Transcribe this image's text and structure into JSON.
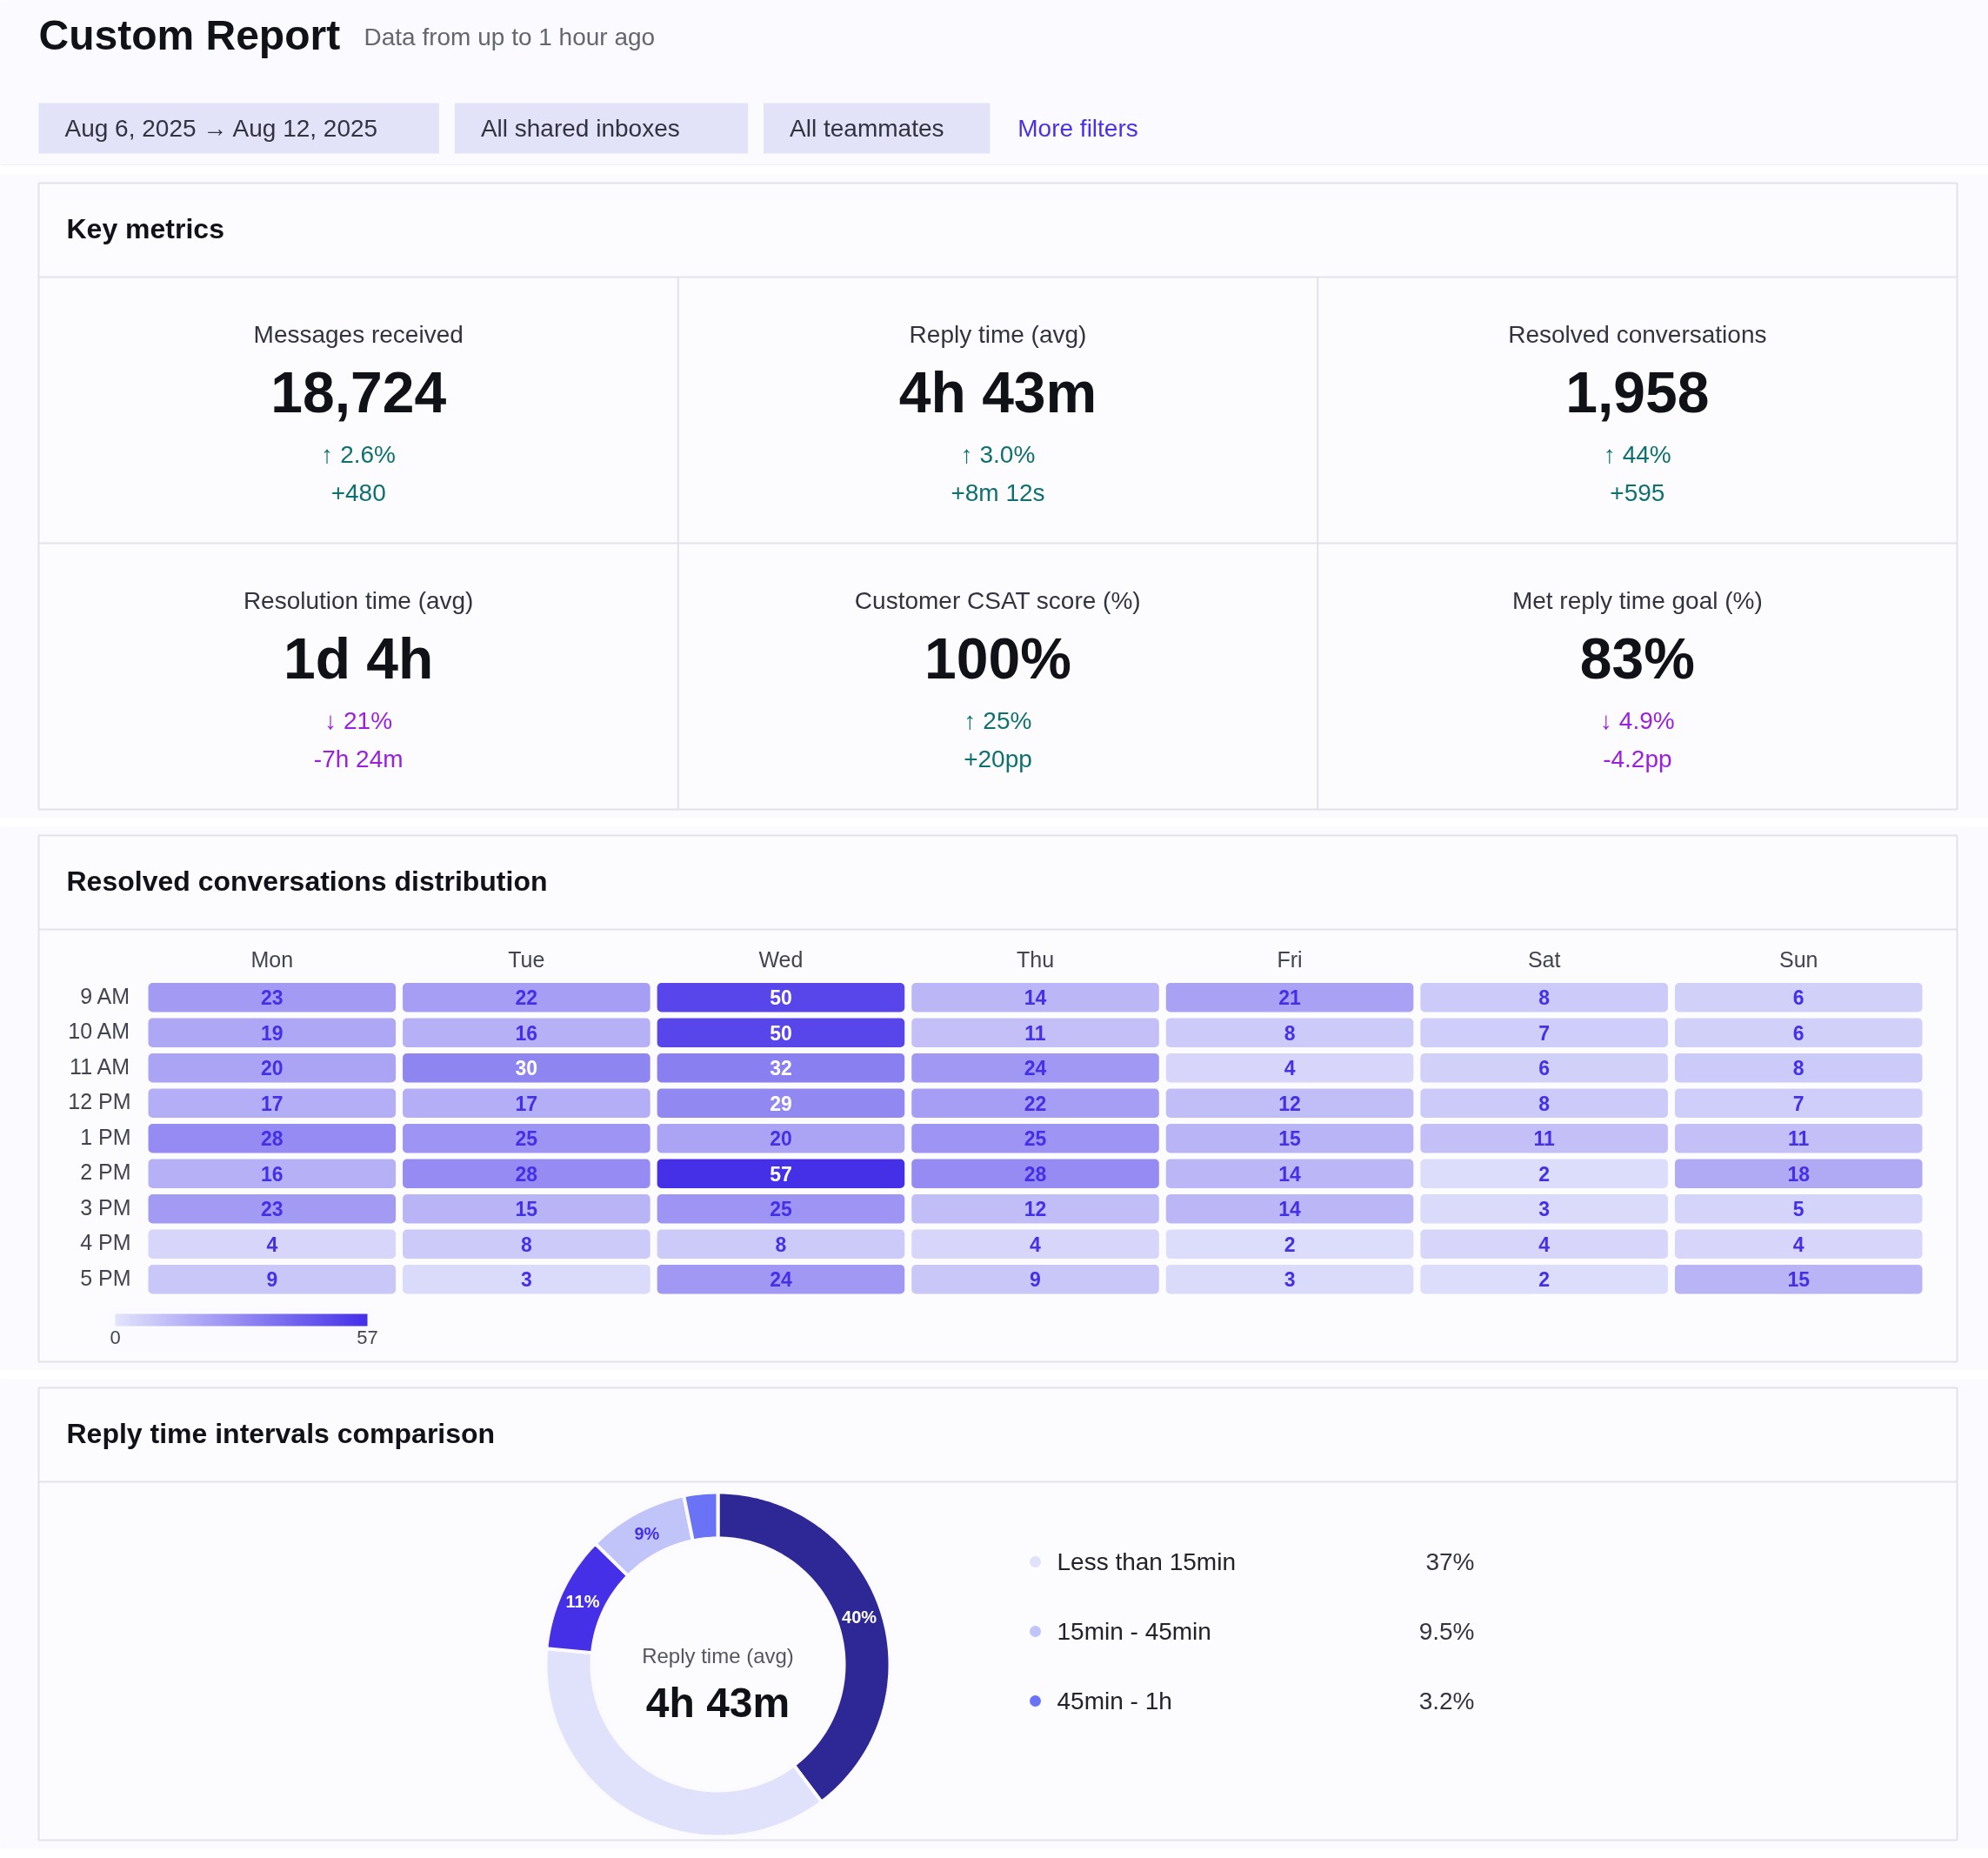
{
  "chart_data": [
    {
      "type": "other",
      "title": "Custom Report",
      "subtitle": "Data from up to 1 hour ago",
      "annotations": [
        "Aug 6, 2025 → Aug 12, 2025",
        "All shared inboxes",
        "All teammates",
        "More filters"
      ]
    },
    {
      "type": "other",
      "title": "Key metrics",
      "colors": [
        "#0f7070",
        "#0f7070",
        "#0f7070",
        "#9a1fe0",
        "#0f7070",
        "#9a1fe0"
      ],
      "annotations": [
        "Messages received",
        "18,724",
        "↑ 2.6%",
        "+480",
        "Reply time (avg)",
        "4h 43m",
        "↑ 3.0%",
        "+8m 12s",
        "Resolved conversations",
        "1,958",
        "↑ 44%",
        "+595",
        "Resolution time (avg)",
        "1d 4h",
        "↓ 21%",
        "-7h 24m",
        "Customer CSAT score (%)",
        "100%",
        "↑ 25%",
        "+20pp",
        "Met reply time goal (%)",
        "83%",
        "↓ 4.9%",
        "-4.2pp"
      ]
    },
    {
      "type": "heatmap",
      "title": "Resolved conversations distribution",
      "categories": [
        "Mon",
        "Tue",
        "Wed",
        "Thu",
        "Fri",
        "Sat",
        "Sun"
      ],
      "y_categories": [
        "9 AM",
        "10 AM",
        "11 AM",
        "12 PM",
        "1 PM",
        "2 PM",
        "3 PM",
        "4 PM",
        "5 PM"
      ],
      "cells": [
        [
          23,
          22,
          50,
          14,
          21,
          8,
          6
        ],
        [
          19,
          16,
          50,
          11,
          8,
          7,
          6
        ],
        [
          20,
          30,
          32,
          24,
          4,
          6,
          8
        ],
        [
          17,
          17,
          29,
          22,
          12,
          8,
          7
        ],
        [
          28,
          25,
          20,
          25,
          15,
          11,
          11
        ],
        [
          16,
          28,
          57,
          28,
          14,
          2,
          18
        ],
        [
          23,
          15,
          25,
          12,
          14,
          3,
          5
        ],
        [
          4,
          8,
          8,
          4,
          2,
          4,
          4
        ],
        [
          9,
          3,
          24,
          9,
          3,
          2,
          15
        ]
      ],
      "clim": [
        0,
        57
      ],
      "cticks": [
        0,
        57
      ],
      "data_labels": true
    },
    {
      "type": "donut",
      "title": "Reply time intervals comparison",
      "categories": [
        null,
        "Less than 15min",
        null,
        "15min - 45min",
        "45min - 1h"
      ],
      "values": [
        40,
        37,
        11,
        9.5,
        3.2
      ],
      "colors": [
        "#2e2897",
        "#e0e1fb",
        "#4530e8",
        "#c0c4f8",
        "#6a72f5"
      ],
      "value_labels": [
        "40%",
        null,
        "11%",
        "9%",
        null
      ],
      "annotations": [
        "Reply time (avg)",
        "4h 43m",
        "37%",
        "9.5%",
        "3.2%"
      ],
      "legend": "right"
    }
  ]
}
